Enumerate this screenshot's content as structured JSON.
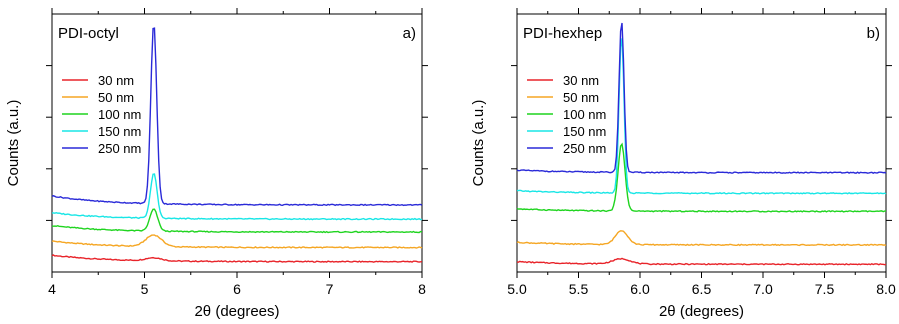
{
  "chart_data": [
    {
      "type": "line",
      "panel_label": "a)",
      "sample": "PDI-octyl",
      "xlabel": "2θ (degrees)",
      "ylabel": "Counts (a.u.)",
      "xlim": [
        4,
        8
      ],
      "ylim": [
        0,
        1
      ],
      "xticks": [
        "4",
        "5",
        "6",
        "7",
        "8"
      ],
      "yticks_labeled": false,
      "grid": false,
      "legend_position": "upper-left",
      "peak_position": 5.1,
      "series": [
        {
          "name": "30 nm",
          "color": "#e8242a",
          "baseline": 0.04,
          "start_offset": 0.025,
          "peak_height": 0.012,
          "peak_width": 0.12
        },
        {
          "name": "50 nm",
          "color": "#f5a623",
          "baseline": 0.095,
          "start_offset": 0.025,
          "peak_height": 0.045,
          "peak_width": 0.12
        },
        {
          "name": "100 nm",
          "color": "#1fd41f",
          "baseline": 0.155,
          "start_offset": 0.025,
          "peak_height": 0.085,
          "peak_width": 0.06
        },
        {
          "name": "150 nm",
          "color": "#18e6e6",
          "baseline": 0.205,
          "start_offset": 0.025,
          "peak_height": 0.175,
          "peak_width": 0.05
        },
        {
          "name": "250 nm",
          "color": "#2a2ad8",
          "baseline": 0.26,
          "start_offset": 0.035,
          "peak_height": 0.7,
          "peak_width": 0.045
        }
      ]
    },
    {
      "type": "line",
      "panel_label": "b)",
      "sample": "PDI-hexhep",
      "xlabel": "2θ (degrees)",
      "ylabel": "Counts (a.u.)",
      "xlim": [
        5.0,
        8.0
      ],
      "ylim": [
        0,
        1
      ],
      "xticks": [
        "5.0",
        "5.5",
        "6.0",
        "6.5",
        "7.0",
        "7.5",
        "8.0"
      ],
      "yticks_labeled": false,
      "grid": false,
      "legend_position": "upper-left",
      "peak_position": 5.85,
      "series": [
        {
          "name": "30 nm",
          "color": "#e8242a",
          "baseline": 0.03,
          "start_offset": 0.01,
          "peak_height": 0.02,
          "peak_width": 0.1
        },
        {
          "name": "50 nm",
          "color": "#f5a623",
          "baseline": 0.105,
          "start_offset": 0.01,
          "peak_height": 0.055,
          "peak_width": 0.07
        },
        {
          "name": "100 nm",
          "color": "#1fd41f",
          "baseline": 0.235,
          "start_offset": 0.01,
          "peak_height": 0.26,
          "peak_width": 0.04
        },
        {
          "name": "150 nm",
          "color": "#18e6e6",
          "baseline": 0.305,
          "start_offset": 0.01,
          "peak_height": 0.61,
          "peak_width": 0.028
        },
        {
          "name": "250 nm",
          "color": "#2a2ad8",
          "baseline": 0.385,
          "start_offset": 0.01,
          "peak_height": 0.59,
          "peak_width": 0.028
        }
      ]
    }
  ]
}
